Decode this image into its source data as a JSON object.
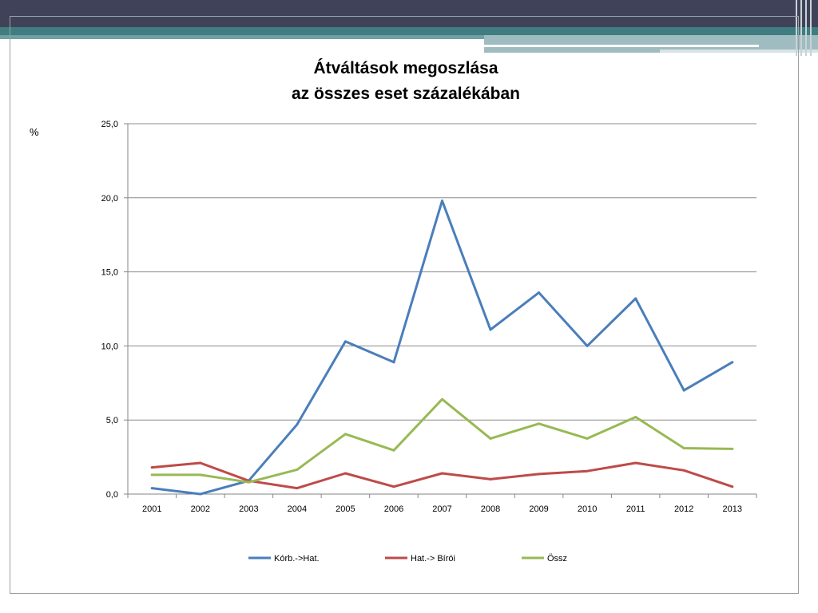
{
  "chart_data": {
    "type": "line",
    "title_lines": [
      "Átváltások megoszlása",
      "az összes eset százalékában"
    ],
    "ylabel": "%",
    "xlabel": "",
    "categories": [
      "2001",
      "2002",
      "2003",
      "2004",
      "2005",
      "2006",
      "2007",
      "2008",
      "2009",
      "2010",
      "2011",
      "2012",
      "2013"
    ],
    "ylim": [
      0,
      25
    ],
    "y_ticks": [
      "0,0",
      "5,0",
      "10,0",
      "15,0",
      "20,0",
      "25,0"
    ],
    "y_tick_values": [
      0,
      5,
      10,
      15,
      20,
      25
    ],
    "grid": true,
    "legend_position": "bottom",
    "series": [
      {
        "name": "Kórb.->Hat.",
        "color": "#4a7ebb",
        "values": [
          0.4,
          0.0,
          0.9,
          4.7,
          10.3,
          8.9,
          19.8,
          11.1,
          13.6,
          10.0,
          13.2,
          7.0,
          8.9
        ]
      },
      {
        "name": "Hat.-> Bírói",
        "color": "#be4b48",
        "values": [
          1.8,
          2.1,
          0.9,
          0.4,
          1.4,
          0.5,
          1.4,
          1.0,
          1.35,
          1.55,
          2.1,
          1.6,
          0.5
        ]
      },
      {
        "name": "Össz",
        "color": "#98b954",
        "values": [
          1.3,
          1.3,
          0.8,
          1.65,
          4.05,
          2.95,
          6.4,
          3.75,
          4.75,
          3.75,
          5.2,
          3.1,
          3.05
        ]
      }
    ]
  }
}
